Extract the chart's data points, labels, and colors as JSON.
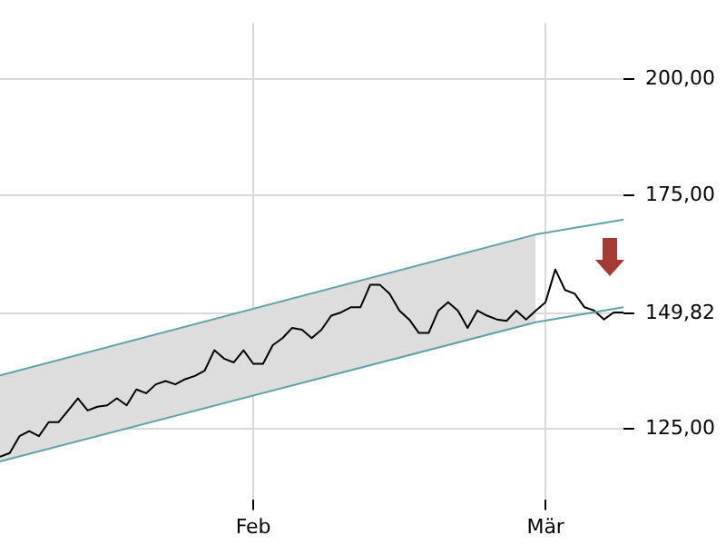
{
  "chart_data": {
    "type": "line",
    "categories": [
      null,
      null,
      null,
      null,
      null,
      null,
      null,
      null,
      null,
      null,
      null,
      null,
      null,
      null,
      null,
      null,
      null,
      null,
      null,
      null,
      null,
      null,
      null,
      null,
      null,
      null,
      "Feb",
      null,
      null,
      null,
      null,
      null,
      null,
      null,
      null,
      null,
      null,
      null,
      null,
      null,
      null,
      null,
      null,
      null,
      null,
      null,
      null,
      null,
      null,
      null,
      null,
      null,
      null,
      null,
      null,
      null,
      "Mär",
      null,
      null,
      null,
      null,
      null,
      null,
      null,
      null
    ],
    "ylim": [
      110,
      212
    ],
    "yticks": [
      {
        "value": 200,
        "label": "200,00"
      },
      {
        "value": 175,
        "label": "175,00"
      },
      {
        "value": 149.82,
        "label": "149,82"
      },
      {
        "value": 125,
        "label": "125,00"
      }
    ],
    "grid": true,
    "marker": "none",
    "line_style": "solid",
    "series": [
      {
        "color": "#000000",
        "values": [
          119.1,
          119.9,
          123.5,
          124.6,
          123.5,
          126.5,
          126.5,
          129.0,
          131.6,
          129.0,
          129.8,
          130.1,
          131.6,
          130.1,
          133.5,
          132.7,
          134.6,
          135.3,
          134.6,
          135.7,
          136.4,
          137.5,
          141.9,
          140.1,
          139.3,
          141.9,
          139.0,
          139.0,
          143.0,
          144.5,
          146.7,
          146.3,
          144.5,
          146.3,
          149.3,
          150.0,
          151.1,
          151.1,
          155.9,
          155.9,
          154.0,
          150.4,
          148.5,
          145.6,
          145.6,
          150.4,
          152.2,
          150.4,
          146.7,
          150.4,
          149.3,
          148.5,
          148.2,
          150.4,
          148.5,
          150.4,
          152.2,
          159.2,
          154.8,
          154.0,
          151.1,
          150.4,
          148.5,
          150.0,
          150.0
        ]
      },
      {
        "color": "#5fa3a8",
        "values": [
          136.5,
          null,
          null,
          null,
          null,
          null,
          null,
          null,
          null,
          null,
          null,
          null,
          null,
          null,
          null,
          null,
          null,
          null,
          null,
          null,
          null,
          null,
          null,
          null,
          null,
          null,
          null,
          null,
          null,
          null,
          null,
          null,
          null,
          null,
          null,
          null,
          null,
          null,
          null,
          null,
          null,
          null,
          null,
          null,
          null,
          null,
          null,
          null,
          null,
          null,
          null,
          null,
          null,
          null,
          null,
          166.7,
          null,
          null,
          null,
          null,
          null,
          null,
          null,
          null,
          169.9
        ],
        "lower": [
          118.1,
          null,
          null,
          null,
          null,
          null,
          null,
          null,
          null,
          null,
          null,
          null,
          null,
          null,
          null,
          null,
          null,
          null,
          null,
          null,
          null,
          null,
          null,
          null,
          null,
          null,
          null,
          null,
          null,
          null,
          null,
          null,
          null,
          null,
          null,
          null,
          null,
          null,
          null,
          null,
          null,
          null,
          null,
          null,
          null,
          null,
          null,
          null,
          null,
          null,
          null,
          null,
          null,
          null,
          null,
          147.9,
          null,
          null,
          null,
          null,
          null,
          null,
          null,
          null,
          null
        ],
        "upper": [
          136.5,
          null,
          null,
          null,
          null,
          null,
          null,
          null,
          null,
          null,
          null,
          null,
          null,
          null,
          null,
          null,
          null,
          null,
          null,
          null,
          null,
          null,
          null,
          null,
          null,
          null,
          null,
          null,
          null,
          null,
          null,
          null,
          null,
          null,
          null,
          null,
          null,
          null,
          null,
          null,
          null,
          null,
          null,
          null,
          null,
          null,
          null,
          null,
          null,
          null,
          null,
          null,
          null,
          null,
          null,
          166.7,
          null,
          null,
          null,
          null,
          null,
          null,
          null,
          null,
          null
        ]
      },
      {
        "color": "#5fa3a8",
        "values": [
          118.1,
          null,
          null,
          null,
          null,
          null,
          null,
          null,
          null,
          null,
          null,
          null,
          null,
          null,
          null,
          null,
          null,
          null,
          null,
          null,
          null,
          null,
          null,
          null,
          null,
          null,
          null,
          null,
          null,
          null,
          null,
          null,
          null,
          null,
          null,
          null,
          null,
          null,
          null,
          null,
          null,
          null,
          null,
          null,
          null,
          null,
          null,
          null,
          null,
          null,
          null,
          null,
          null,
          null,
          null,
          147.9,
          null,
          null,
          null,
          null,
          null,
          null,
          null,
          null,
          151.1
        ]
      }
    ]
  }
}
